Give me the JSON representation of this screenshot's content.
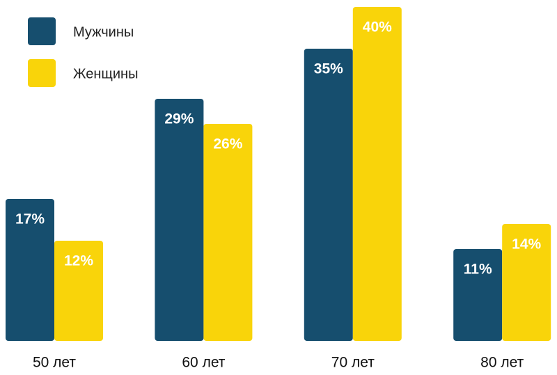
{
  "chart_data": {
    "type": "bar",
    "categories": [
      "50 лет",
      "60 лет",
      "70 лет",
      "80 лет"
    ],
    "series": [
      {
        "name": "Мужчины",
        "color": "#164e6e",
        "values": [
          17,
          29,
          35,
          11
        ],
        "value_labels": [
          "17%",
          "29%",
          "35%",
          "11%"
        ]
      },
      {
        "name": "Женщины",
        "color": "#f9d40a",
        "values": [
          12,
          26,
          40,
          14
        ],
        "value_labels": [
          "12%",
          "26%",
          "40%",
          "14%"
        ]
      }
    ]
  }
}
